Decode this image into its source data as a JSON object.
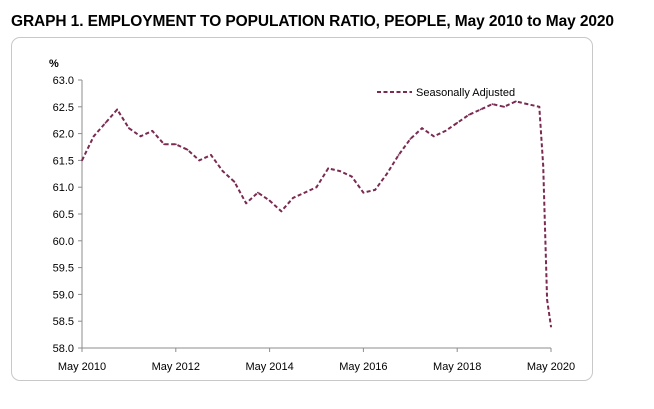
{
  "chart_data": {
    "type": "line",
    "title": "GRAPH 1. EMPLOYMENT TO POPULATION RATIO, PEOPLE, May 2010 to May 2020",
    "ylabel": "%",
    "xlabel": "",
    "ylim": [
      58.0,
      63.0
    ],
    "yticks": [
      "63.0",
      "62.5",
      "62.0",
      "61.5",
      "61.0",
      "60.5",
      "60.0",
      "59.5",
      "59.0",
      "58.5",
      "58.0"
    ],
    "xticks": [
      "May 2010",
      "May 2012",
      "May 2014",
      "May 2016",
      "May 2018",
      "May 2020"
    ],
    "grid": false,
    "legend_position": "top-right",
    "series": [
      {
        "name": "Seasonally Adjusted",
        "color": "#7b2a52",
        "style": "dashed",
        "x": [
          "May 2010",
          "Aug 2010",
          "Nov 2010",
          "Feb 2011",
          "May 2011",
          "Aug 2011",
          "Nov 2011",
          "Feb 2012",
          "May 2012",
          "Aug 2012",
          "Nov 2012",
          "Feb 2013",
          "May 2013",
          "Aug 2013",
          "Nov 2013",
          "Feb 2014",
          "May 2014",
          "Aug 2014",
          "Nov 2014",
          "Feb 2015",
          "May 2015",
          "Aug 2015",
          "Nov 2015",
          "Feb 2016",
          "May 2016",
          "Aug 2016",
          "Nov 2016",
          "Feb 2017",
          "May 2017",
          "Aug 2017",
          "Nov 2017",
          "Feb 2018",
          "May 2018",
          "Aug 2018",
          "Nov 2018",
          "Feb 2019",
          "May 2019",
          "Aug 2019",
          "Nov 2019",
          "Feb 2020",
          "Mar 2020",
          "Apr 2020",
          "May 2020"
        ],
        "values": [
          61.5,
          61.95,
          62.2,
          62.45,
          62.1,
          61.95,
          62.05,
          61.8,
          61.8,
          61.7,
          61.5,
          61.6,
          61.3,
          61.1,
          60.7,
          60.9,
          60.75,
          60.55,
          60.8,
          60.9,
          61.0,
          61.35,
          61.3,
          61.2,
          60.9,
          60.95,
          61.25,
          61.6,
          61.9,
          62.1,
          61.95,
          62.05,
          62.2,
          62.35,
          62.45,
          62.55,
          62.5,
          62.6,
          62.55,
          62.5,
          61.4,
          58.9,
          58.4
        ]
      }
    ]
  }
}
